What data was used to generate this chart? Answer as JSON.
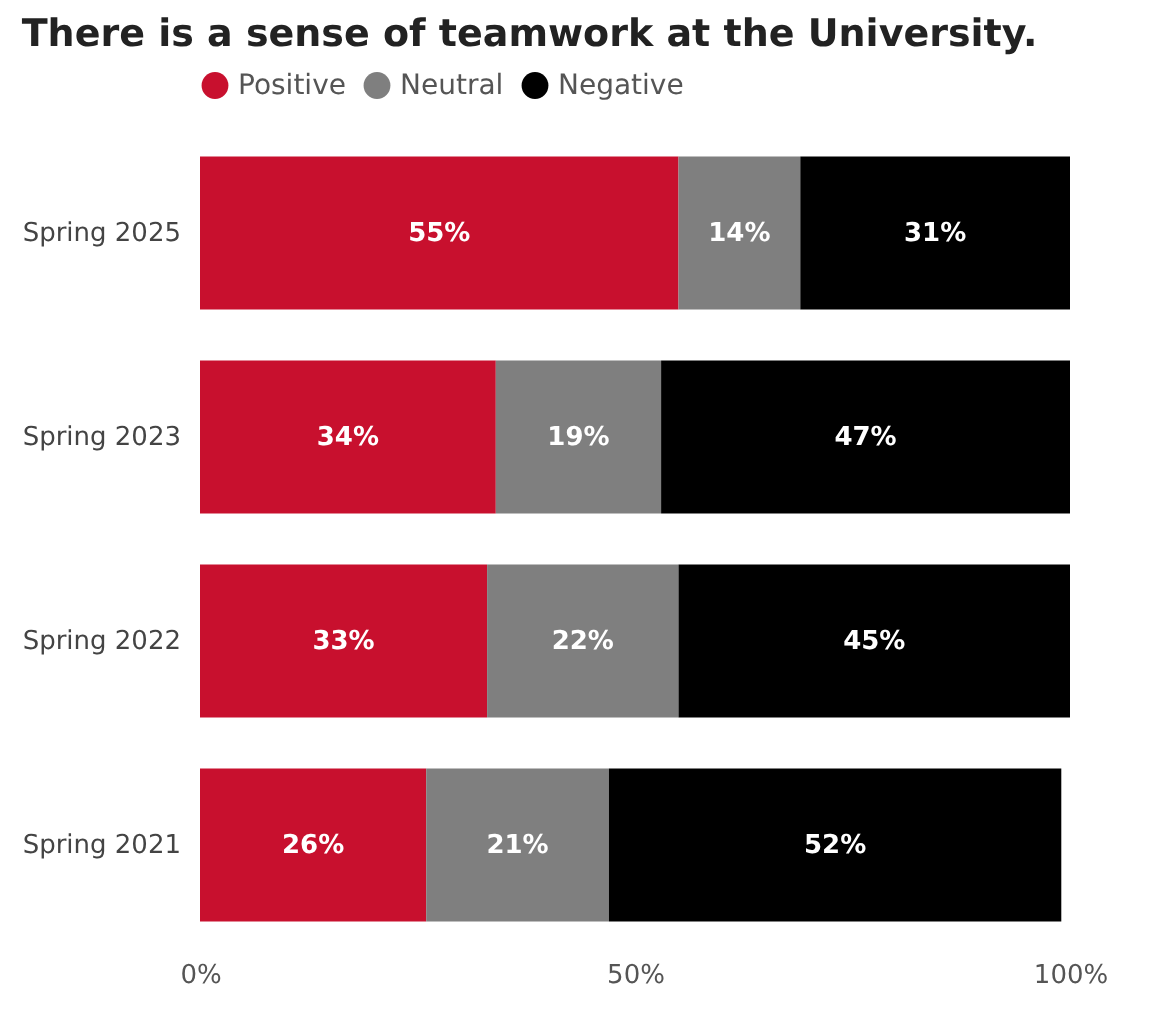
{
  "chart_data": {
    "type": "bar",
    "title": "There is a sense of teamwork at the University.",
    "orientation": "horizontal",
    "stacked": true,
    "categories": [
      "Spring 2025",
      "Spring 2023",
      "Spring 2022",
      "Spring 2021"
    ],
    "series": [
      {
        "name": "Positive",
        "color": "#c8102e",
        "values": [
          55,
          34,
          33,
          26
        ],
        "value_labels": [
          "55%",
          "34%",
          "33%",
          "26%"
        ]
      },
      {
        "name": "Neutral",
        "color": "#7f7f7f",
        "values": [
          14,
          19,
          22,
          21
        ],
        "value_labels": [
          "14%",
          "19%",
          "22%",
          "21%"
        ]
      },
      {
        "name": "Negative",
        "color": "#000000",
        "values": [
          31,
          47,
          45,
          52
        ],
        "value_labels": [
          "31%",
          "47%",
          "45%",
          "52%"
        ]
      }
    ],
    "xlim": [
      0,
      100
    ],
    "xticks": [
      {
        "value": 0,
        "label": "0%"
      },
      {
        "value": 50,
        "label": "50%"
      },
      {
        "value": 100,
        "label": "100%"
      }
    ],
    "legend": "top"
  }
}
